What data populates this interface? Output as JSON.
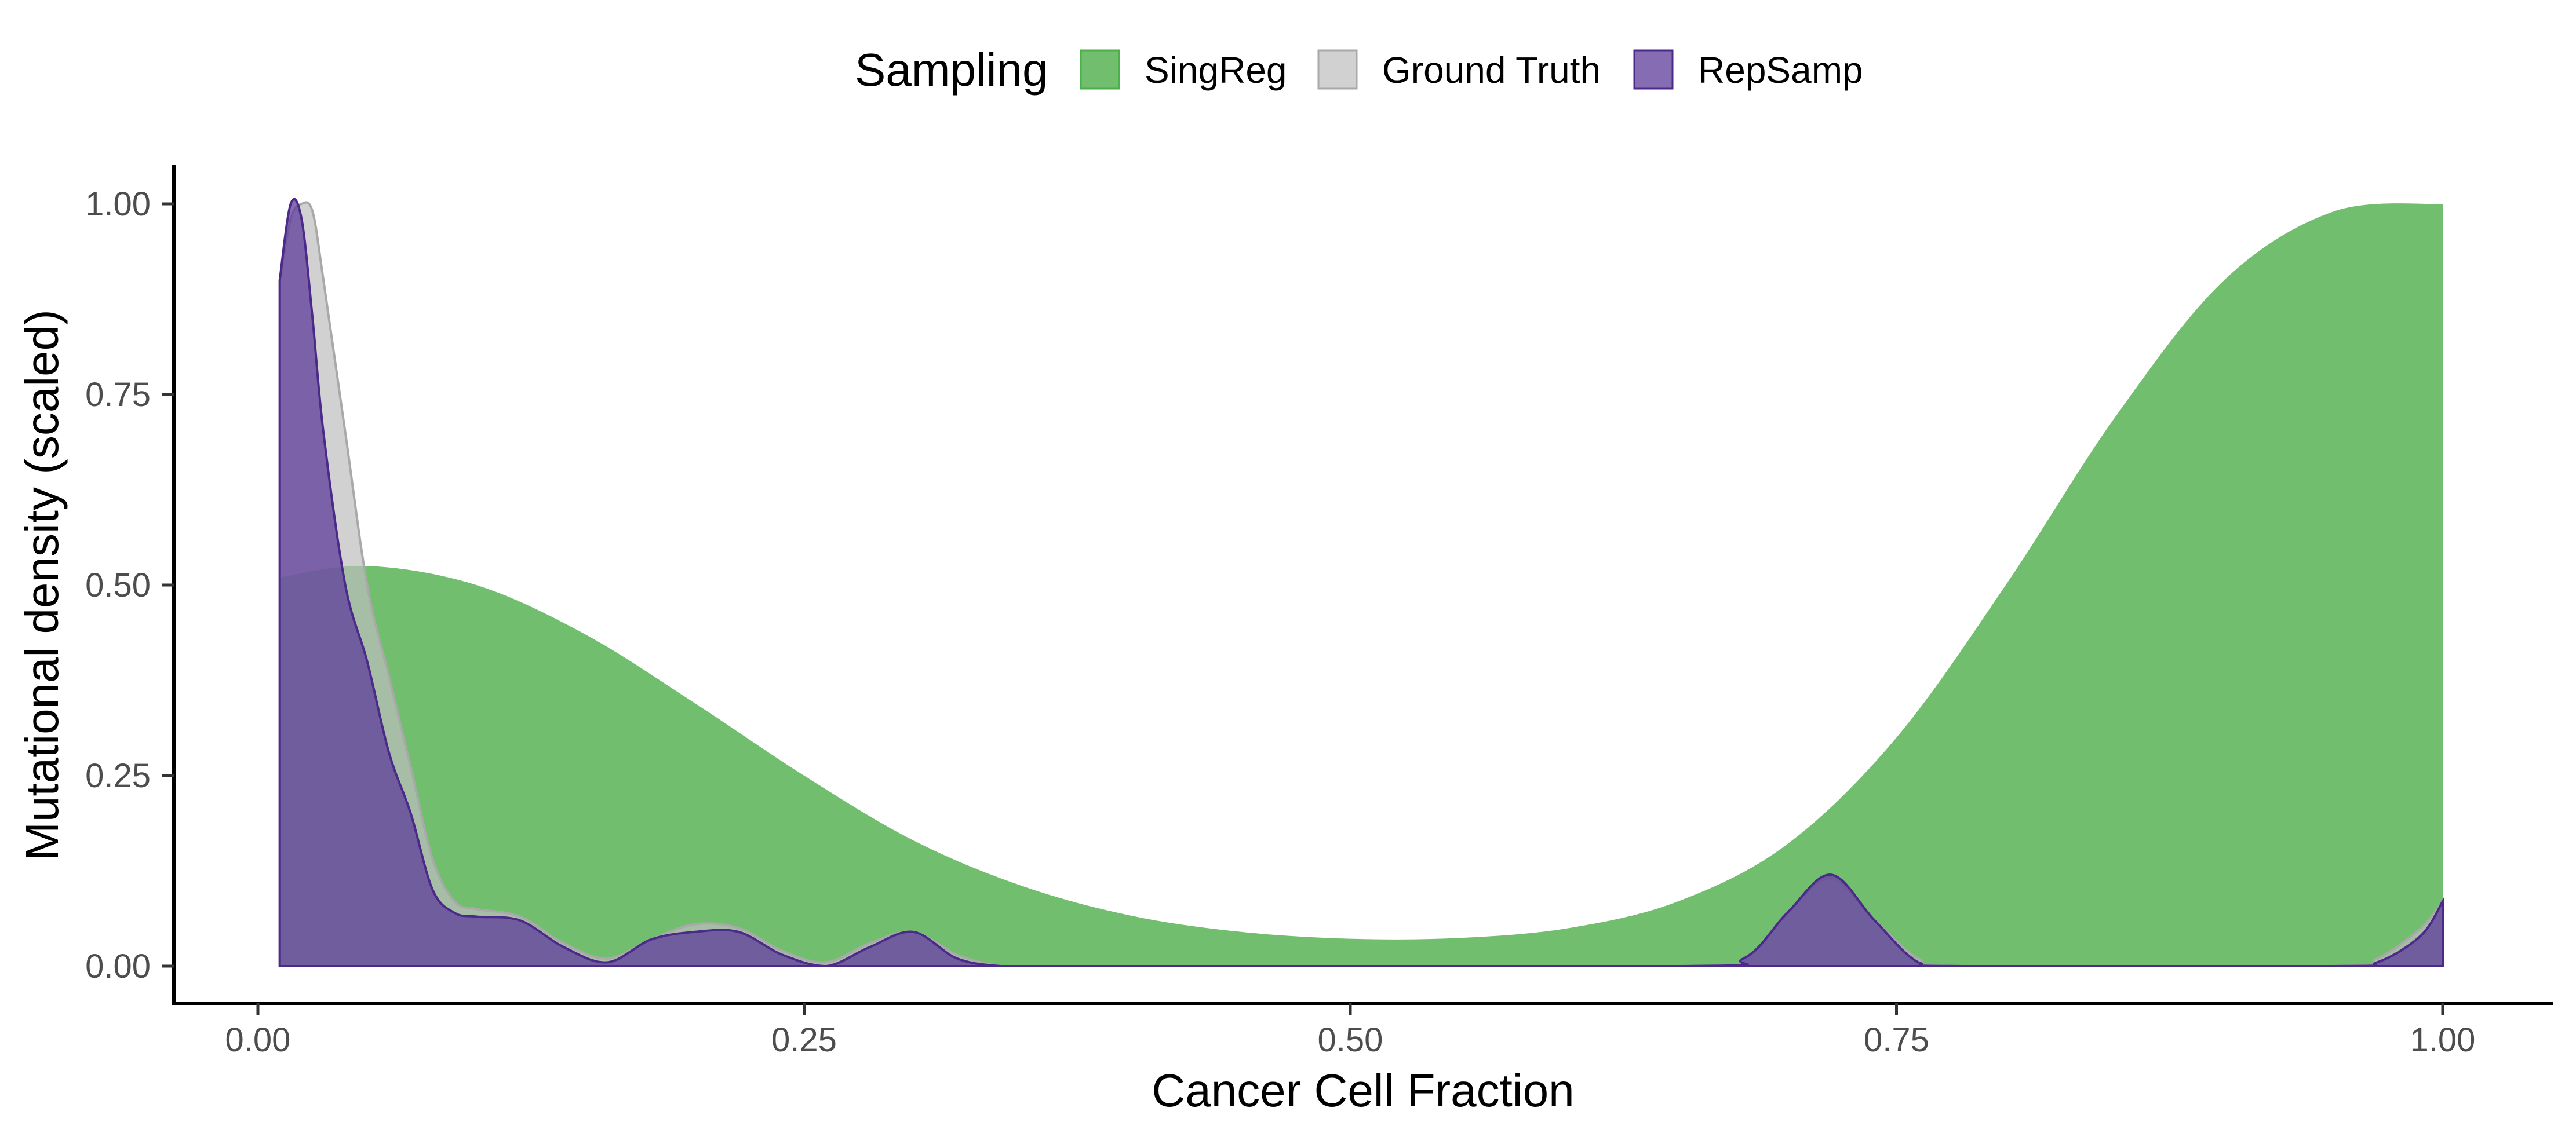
{
  "chart_data": {
    "type": "area",
    "chart_subtype": "density",
    "title": "",
    "xlabel": "Cancer Cell Fraction",
    "ylabel": "Mutational density (scaled)",
    "xlim": [
      -0.04,
      1.05
    ],
    "ylim": [
      -0.05,
      1.05
    ],
    "x_ticks": [
      "0.00",
      "0.25",
      "0.50",
      "0.75",
      "1.00"
    ],
    "x_tick_values": [
      0,
      0.25,
      0.5,
      0.75,
      1.0
    ],
    "y_ticks": [
      "0.00",
      "0.25",
      "0.50",
      "0.75",
      "1.00"
    ],
    "y_tick_values": [
      0,
      0.25,
      0.5,
      0.75,
      1.0
    ],
    "grid": false,
    "legend": {
      "title": "Sampling",
      "position": "top",
      "entries": [
        "SingReg",
        "Ground Truth",
        "RepSamp"
      ]
    },
    "series": [
      {
        "name": "SingReg",
        "fill": "#4daf4a",
        "fill_opacity": 0.8,
        "stroke": "none",
        "x": [
          0.01,
          0.05,
          0.1,
          0.15,
          0.2,
          0.25,
          0.3,
          0.35,
          0.4,
          0.45,
          0.5,
          0.55,
          0.6,
          0.65,
          0.7,
          0.75,
          0.8,
          0.85,
          0.9,
          0.95,
          1.0
        ],
        "y": [
          0.51,
          0.525,
          0.5,
          0.435,
          0.345,
          0.25,
          0.165,
          0.105,
          0.066,
          0.045,
          0.036,
          0.037,
          0.05,
          0.085,
          0.16,
          0.3,
          0.5,
          0.72,
          0.9,
          0.99,
          1.0
        ]
      },
      {
        "name": "Ground Truth",
        "fill": "#bebebe",
        "fill_opacity": 0.7,
        "stroke": "#a9a9a9",
        "x": [
          0.01,
          0.015,
          0.02,
          0.025,
          0.03,
          0.04,
          0.05,
          0.06,
          0.07,
          0.08,
          0.09,
          0.1,
          0.12,
          0.14,
          0.16,
          0.18,
          0.2,
          0.22,
          0.24,
          0.26,
          0.28,
          0.3,
          0.32,
          0.34,
          0.36,
          0.65,
          0.68,
          0.7,
          0.72,
          0.74,
          0.76,
          0.78,
          0.95,
          0.97,
          0.99,
          1.0
        ],
        "y": [
          0.9,
          0.98,
          1.0,
          0.99,
          0.9,
          0.7,
          0.5,
          0.38,
          0.26,
          0.14,
          0.085,
          0.075,
          0.065,
          0.03,
          0.01,
          0.035,
          0.055,
          0.05,
          0.02,
          0.005,
          0.03,
          0.045,
          0.015,
          0.0,
          0.0,
          0.0,
          0.01,
          0.07,
          0.115,
          0.06,
          0.01,
          0.0,
          0.0,
          0.01,
          0.05,
          0.085
        ]
      },
      {
        "name": "RepSamp",
        "fill": "#5e3c99",
        "fill_opacity": 0.75,
        "stroke": "#4b2a8a",
        "x": [
          0.01,
          0.015,
          0.02,
          0.025,
          0.03,
          0.04,
          0.05,
          0.06,
          0.07,
          0.08,
          0.09,
          0.1,
          0.12,
          0.14,
          0.16,
          0.18,
          0.2,
          0.22,
          0.24,
          0.26,
          0.28,
          0.3,
          0.32,
          0.34,
          0.36,
          0.65,
          0.68,
          0.7,
          0.72,
          0.74,
          0.76,
          0.78,
          0.95,
          0.97,
          0.99,
          1.0
        ],
        "y": [
          0.9,
          1.0,
          0.98,
          0.85,
          0.7,
          0.5,
          0.4,
          0.28,
          0.2,
          0.1,
          0.07,
          0.065,
          0.06,
          0.025,
          0.005,
          0.035,
          0.045,
          0.045,
          0.015,
          0.0,
          0.025,
          0.045,
          0.01,
          0.0,
          0.0,
          0.0,
          0.01,
          0.07,
          0.12,
          0.06,
          0.005,
          0.0,
          0.0,
          0.005,
          0.04,
          0.085
        ]
      }
    ]
  }
}
